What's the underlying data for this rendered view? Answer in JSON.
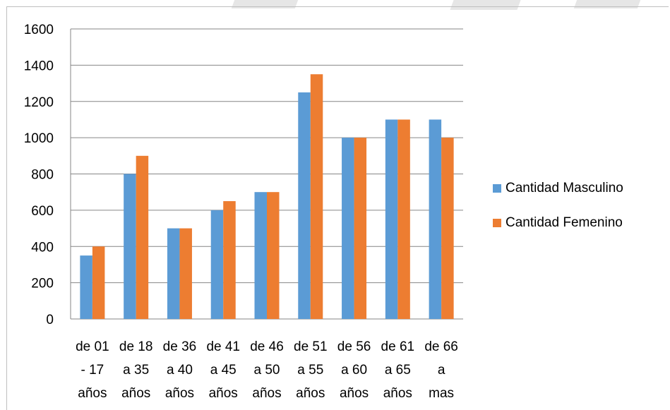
{
  "colors": {
    "masculino": "#5b9bd5",
    "femenino": "#ed7d31",
    "grid": "#868686",
    "watermark": "#e6e6e6"
  },
  "chart_data": {
    "type": "bar",
    "title": "",
    "xlabel": "",
    "ylabel": "",
    "ylim": [
      0,
      1600
    ],
    "yticks": [
      "0",
      "200",
      "400",
      "600",
      "800",
      "1000",
      "1200",
      "1400",
      "1600"
    ],
    "grid": true,
    "legend_position": "right",
    "categories": [
      [
        "de 01",
        "- 17",
        "años"
      ],
      [
        "de 18",
        "a 35",
        "años"
      ],
      [
        "de 36",
        "a 40",
        "años"
      ],
      [
        "de 41",
        "a 45",
        "años"
      ],
      [
        "de 46",
        "a 50",
        "años"
      ],
      [
        "de 51",
        "a 55",
        "años"
      ],
      [
        "de 56",
        "a 60",
        "años"
      ],
      [
        "de 61",
        "a 65",
        "años"
      ],
      [
        "de 66",
        "a",
        "mas"
      ]
    ],
    "series": [
      {
        "name": "Cantidad Masculino",
        "color_key": "masculino",
        "values": [
          350,
          800,
          500,
          600,
          700,
          1250,
          1000,
          1100,
          1100
        ]
      },
      {
        "name": "Cantidad Femenino",
        "color_key": "femenino",
        "values": [
          400,
          900,
          500,
          650,
          700,
          1350,
          1000,
          1100,
          1000
        ]
      }
    ]
  }
}
